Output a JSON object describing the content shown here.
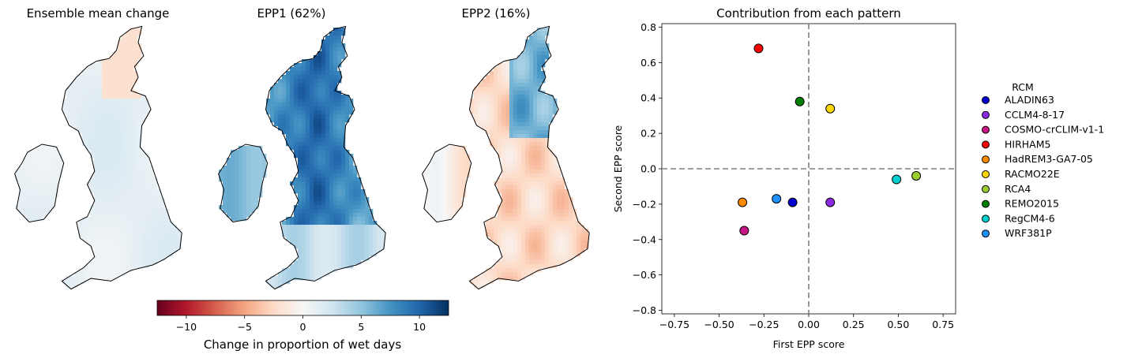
{
  "maps": [
    {
      "title": "Ensemble mean change",
      "pattern": "mean"
    },
    {
      "title": "EPP1 (62%)",
      "pattern": "epp1"
    },
    {
      "title": "EPP2 (16%)",
      "pattern": "epp2"
    }
  ],
  "colorbar": {
    "label": "Change in proportion of wet days",
    "range": [
      -12.5,
      12.5
    ],
    "ticks": [
      -10,
      -5,
      0,
      5,
      10
    ],
    "tick_labels": [
      "−10",
      "−5",
      "0",
      "5",
      "10"
    ],
    "colormap": "RdBu",
    "colors": [
      "#67001f",
      "#b2182b",
      "#d6604d",
      "#f4a582",
      "#fddbc7",
      "#f7f7f7",
      "#d1e5f0",
      "#92c5de",
      "#4393c3",
      "#2166ac",
      "#053061"
    ]
  },
  "chart_data": {
    "type": "scatter",
    "title": "Contribution from each pattern",
    "xlabel": "First EPP score",
    "ylabel": "Second EPP score",
    "xlim": [
      -0.82,
      0.82
    ],
    "ylim": [
      -0.82,
      0.82
    ],
    "xticks": [
      -0.75,
      -0.5,
      -0.25,
      0.0,
      0.25,
      0.5,
      0.75
    ],
    "xtick_labels": [
      "−0.75",
      "−0.50",
      "−0.25",
      "0.00",
      "0.25",
      "0.50",
      "0.75"
    ],
    "yticks": [
      -0.8,
      -0.6,
      -0.4,
      -0.2,
      0.0,
      0.2,
      0.4,
      0.6,
      0.8
    ],
    "ytick_labels": [
      "−0.8",
      "−0.6",
      "−0.4",
      "−0.2",
      "0.0",
      "0.2",
      "0.4",
      "0.6",
      "0.8"
    ],
    "grid": false,
    "reference_lines": {
      "x": 0,
      "y": 0,
      "style": "dashed",
      "color": "#808080"
    },
    "legend": {
      "title": "RCM",
      "placement": "outside-right"
    },
    "series": [
      {
        "name": "ALADIN63",
        "color": "#0000cd",
        "x": -0.09,
        "y": -0.19
      },
      {
        "name": "CCLM4-8-17",
        "color": "#8a2be2",
        "x": 0.12,
        "y": -0.19
      },
      {
        "name": "COSMO-crCLIM-v1-1",
        "color": "#c71585",
        "x": -0.36,
        "y": -0.35
      },
      {
        "name": "HIRHAM5",
        "color": "#ff0000",
        "x": -0.28,
        "y": 0.68
      },
      {
        "name": "HadREM3-GA7-05",
        "color": "#ff8c00",
        "x": -0.37,
        "y": -0.19
      },
      {
        "name": "RACMO22E",
        "color": "#ffd700",
        "x": 0.12,
        "y": 0.34
      },
      {
        "name": "RCA4",
        "color": "#9acd32",
        "x": 0.6,
        "y": -0.04
      },
      {
        "name": "REMO2015",
        "color": "#008000",
        "x": -0.05,
        "y": 0.38
      },
      {
        "name": "RegCM4-6",
        "color": "#00ced1",
        "x": 0.49,
        "y": -0.06
      },
      {
        "name": "WRF381P",
        "color": "#1e90ff",
        "x": -0.18,
        "y": -0.17
      }
    ]
  }
}
